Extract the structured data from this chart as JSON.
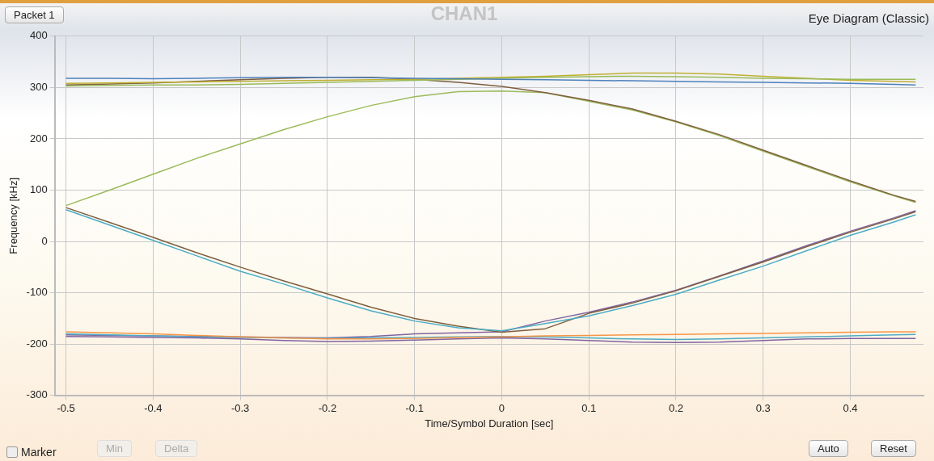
{
  "chart_data": {
    "type": "line",
    "title": "CHAN1",
    "xlabel": "Time/Symbol Duration [sec]",
    "ylabel": "Frequency [kHz]",
    "annotations": [
      "Eye Diagram (Classic)",
      "Packet 1",
      "Marker",
      "Min",
      "Delta",
      "Auto",
      "Reset"
    ],
    "x": [
      -0.5,
      -0.45,
      -0.4,
      -0.35,
      -0.3,
      -0.25,
      -0.2,
      -0.15,
      -0.1,
      -0.05,
      0,
      0.05,
      0.1,
      0.15,
      0.2,
      0.25,
      0.3,
      0.35,
      0.4,
      0.45,
      0.475
    ],
    "xlim": [
      -0.513,
      0.484
    ],
    "xticks": [
      -0.5,
      -0.4,
      -0.3,
      -0.2,
      -0.1,
      0,
      0.1,
      0.2,
      0.3,
      0.4
    ],
    "ylim": [
      -300,
      400
    ],
    "yticks": [
      -300,
      -200,
      -100,
      0,
      100,
      200,
      300,
      400
    ],
    "grid": true,
    "legend": false,
    "marker": "none",
    "line_style": "solid",
    "series": [
      {
        "color": "#4f81bd",
        "values": [
          318,
          318,
          317,
          318,
          319,
          320,
          320,
          319,
          318,
          317,
          316,
          315,
          314,
          313,
          312,
          311,
          310,
          309,
          308,
          306,
          305
        ]
      },
      {
        "color": "#9bbb59",
        "values": [
          303,
          304,
          305,
          305,
          306,
          308,
          310,
          312,
          314,
          316,
          318,
          320,
          321,
          322,
          321,
          320,
          318,
          317,
          316,
          316,
          316
        ]
      },
      {
        "color": "#c0b030",
        "values": [
          308,
          309,
          310,
          311,
          312,
          313,
          314,
          315,
          316,
          318,
          320,
          322,
          325,
          328,
          328,
          326,
          322,
          318,
          314,
          312,
          311
        ]
      },
      {
        "color": "#7f5f3f",
        "values": [
          305,
          307,
          309,
          312,
          315,
          318,
          320,
          320,
          316,
          310,
          302,
          290,
          275,
          258,
          234,
          208,
          178,
          148,
          118,
          90,
          78
        ]
      },
      {
        "color": "#f79646",
        "values": [
          -176,
          -178,
          -180,
          -183,
          -186,
          -188,
          -190,
          -190,
          -189,
          -187,
          -186,
          -184,
          -183,
          -182,
          -181,
          -180,
          -179,
          -178,
          -177,
          -176,
          -176
        ]
      },
      {
        "color": "#8064a2",
        "values": [
          -185,
          -186,
          -187,
          -188,
          -190,
          -193,
          -195,
          -194,
          -192,
          -190,
          -188,
          -190,
          -193,
          -196,
          -197,
          -196,
          -193,
          -190,
          -189,
          -189,
          -189
        ]
      },
      {
        "color": "#4bacc6",
        "values": [
          -180,
          -182,
          -184,
          -186,
          -187,
          -188,
          -189,
          -188,
          -187,
          -186,
          -185,
          -186,
          -188,
          -190,
          -191,
          -190,
          -188,
          -186,
          -184,
          -182,
          -181
        ]
      },
      {
        "color": "#9bbb59",
        "values": [
          70,
          100,
          131,
          162,
          190,
          218,
          243,
          265,
          282,
          292,
          293,
          290,
          273,
          256,
          233,
          206,
          176,
          146,
          116,
          89,
          76
        ]
      },
      {
        "color": "#4bacc6",
        "values": [
          62,
          32,
          2,
          -28,
          -58,
          -83,
          -110,
          -135,
          -155,
          -168,
          -174,
          -160,
          -145,
          -125,
          -103,
          -75,
          -48,
          -18,
          12,
          38,
          52
        ]
      },
      {
        "color": "#7f5f3f",
        "values": [
          66,
          37,
          8,
          -22,
          -50,
          -77,
          -102,
          -128,
          -150,
          -165,
          -177,
          -170,
          -140,
          -120,
          -96,
          -68,
          -40,
          -10,
          18,
          44,
          58
        ]
      },
      {
        "color": "#8064a2",
        "values": [
          -182,
          -183,
          -184,
          -185,
          -186,
          -187,
          -188,
          -185,
          -180,
          -178,
          -176,
          -155,
          -138,
          -118,
          -95,
          -67,
          -38,
          -8,
          20,
          46,
          60
        ]
      }
    ]
  }
}
